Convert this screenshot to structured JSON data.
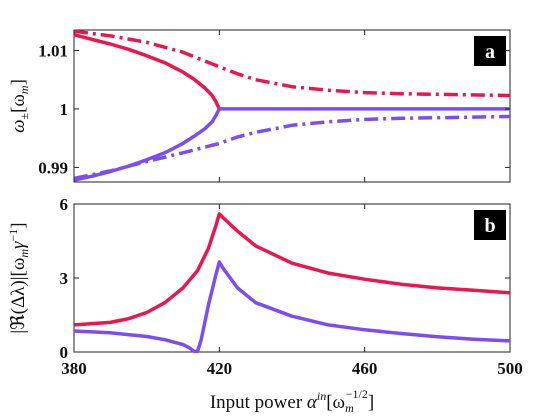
{
  "chart_data": [
    {
      "type": "line",
      "panel_label": "a",
      "ylabel_main": "ω",
      "ylabel_sub": "±",
      "ylabel_unit": "[ω",
      "ylabel_unit_sub": "m",
      "ylabel_close": "]",
      "xlim": [
        380,
        500
      ],
      "ylim": [
        0.9875,
        1.0135
      ],
      "yticks": [
        {
          "value": 0.99,
          "label": "0.99"
        },
        {
          "value": 1.0,
          "label": "1"
        },
        {
          "value": 1.01,
          "label": "1.01"
        }
      ],
      "grid": false,
      "colors": {
        "upper": "#e8174f",
        "lower": "#7a4ef0"
      },
      "series": [
        {
          "role": "upper-solid",
          "style": "solid",
          "x": [
            380,
            385,
            390,
            395,
            400,
            405,
            410,
            413,
            416,
            418,
            419,
            420
          ],
          "y": [
            1.0127,
            1.0119,
            1.0111,
            1.0102,
            1.0091,
            1.0079,
            1.0063,
            1.0051,
            1.0036,
            1.0023,
            1.0013,
            1.0
          ]
        },
        {
          "role": "lower-solid",
          "style": "solid",
          "x": [
            380,
            385,
            390,
            395,
            400,
            405,
            410,
            413,
            416,
            418,
            419,
            420
          ],
          "y": [
            0.9878,
            0.9885,
            0.9893,
            0.9902,
            0.9913,
            0.9925,
            0.9941,
            0.9953,
            0.9966,
            0.9978,
            0.9988,
            1.0
          ]
        },
        {
          "role": "merged-solid",
          "style": "solid",
          "x": [
            420,
            500
          ],
          "y": [
            1.0,
            1.0
          ]
        },
        {
          "role": "upper-dashdot",
          "style": "dashdot",
          "x": [
            380,
            390,
            400,
            410,
            420,
            425,
            430,
            440,
            450,
            460,
            470,
            480,
            490,
            500
          ],
          "y": [
            1.0133,
            1.0125,
            1.0114,
            1.0097,
            1.0072,
            1.006,
            1.005,
            1.0038,
            1.0032,
            1.0028,
            1.0026,
            1.0025,
            1.0024,
            1.0023
          ]
        },
        {
          "role": "lower-dashdot",
          "style": "dashdot",
          "x": [
            380,
            390,
            400,
            410,
            420,
            425,
            430,
            440,
            450,
            460,
            470,
            480,
            490,
            500
          ],
          "y": [
            0.9881,
            0.9894,
            0.991,
            0.9925,
            0.9941,
            0.9952,
            0.996,
            0.9972,
            0.9978,
            0.9982,
            0.9984,
            0.9985,
            0.9986,
            0.9987
          ]
        }
      ]
    },
    {
      "type": "line",
      "panel_label": "b",
      "ylabel_main": "|ℜ(Δλ)|[ω",
      "ylabel_sub": "m",
      "ylabel_mid": "γ",
      "ylabel_sup": "−1",
      "ylabel_close": "]",
      "xlim": [
        380,
        500
      ],
      "ylim": [
        0,
        6
      ],
      "yticks": [
        {
          "value": 0,
          "label": "0"
        },
        {
          "value": 3,
          "label": "3"
        },
        {
          "value": 6,
          "label": "6"
        }
      ],
      "xticks": [
        {
          "value": 380,
          "label": "380"
        },
        {
          "value": 420,
          "label": "420"
        },
        {
          "value": 460,
          "label": "460"
        },
        {
          "value": 500,
          "label": "500"
        }
      ],
      "xlabel_main": "Input power ",
      "xlabel_alpha": "α",
      "xlabel_sup": "in",
      "xlabel_open": "[ω",
      "xlabel_sub": "m",
      "xlabel_sup2": "−1/2",
      "xlabel_close": "]",
      "grid": false,
      "colors": {
        "upper": "#e8174f",
        "lower": "#7a4ef0"
      },
      "series": [
        {
          "role": "upper",
          "style": "solid",
          "x": [
            380,
            390,
            395,
            400,
            405,
            410,
            414,
            417,
            419,
            420,
            421,
            425,
            430,
            440,
            450,
            460,
            470,
            480,
            490,
            500
          ],
          "y": [
            1.1,
            1.2,
            1.35,
            1.6,
            2.0,
            2.6,
            3.3,
            4.2,
            5.1,
            5.6,
            5.45,
            4.9,
            4.3,
            3.6,
            3.2,
            2.95,
            2.75,
            2.6,
            2.5,
            2.4
          ]
        },
        {
          "role": "lower",
          "style": "solid",
          "x": [
            380,
            390,
            400,
            405,
            410,
            412,
            413,
            414,
            415,
            416,
            417,
            418,
            419,
            420,
            421,
            425,
            430,
            440,
            450,
            460,
            470,
            480,
            490,
            500
          ],
          "y": [
            0.85,
            0.78,
            0.63,
            0.5,
            0.3,
            0.15,
            0.03,
            0.02,
            0.5,
            1.2,
            1.9,
            2.5,
            3.1,
            3.65,
            3.4,
            2.6,
            2.0,
            1.45,
            1.1,
            0.9,
            0.75,
            0.62,
            0.52,
            0.45
          ]
        }
      ]
    }
  ]
}
